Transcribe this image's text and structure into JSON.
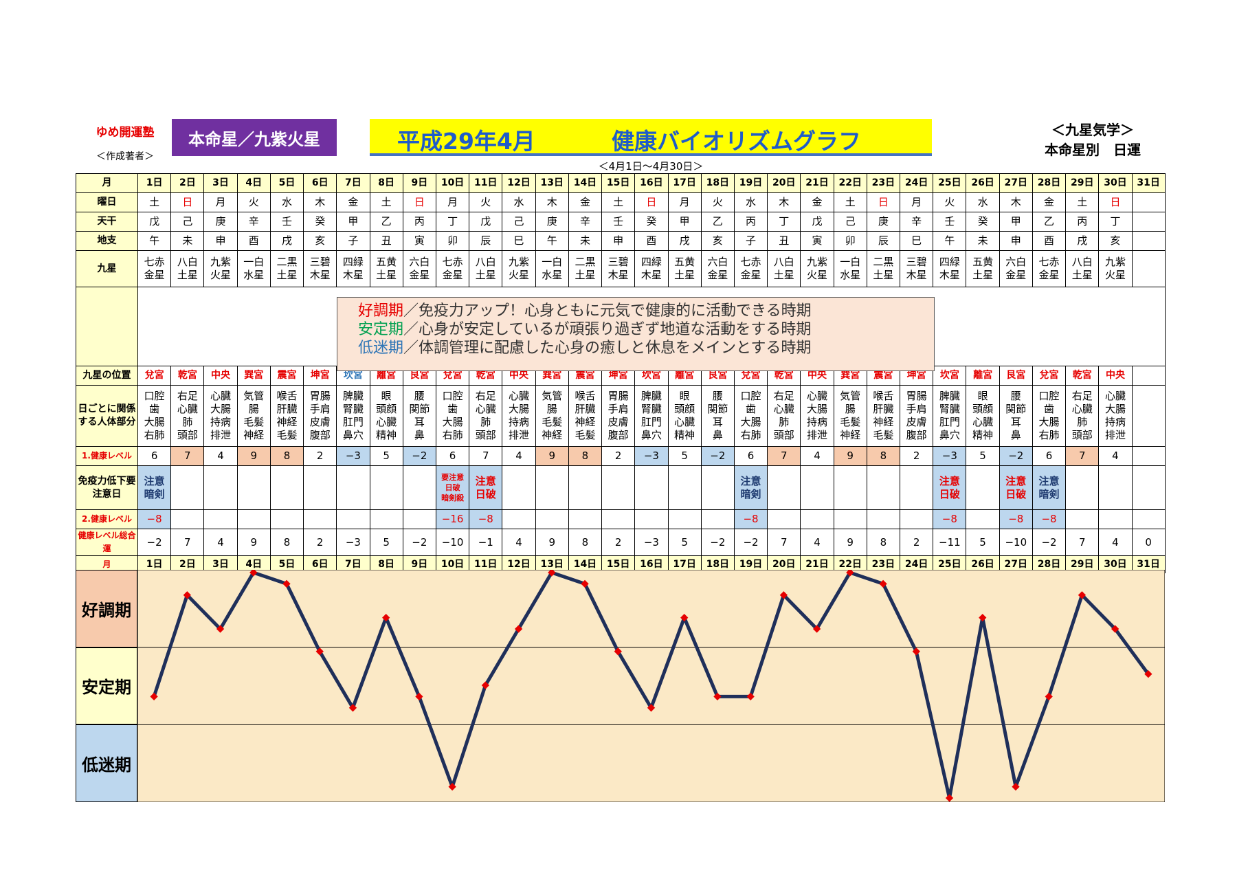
{
  "header": {
    "brand": "ゆめ開運塾",
    "author": "＜作成著者＞",
    "honmei": "本命星／九紫火星",
    "title_period": "平成29年4月",
    "title_main": "健康バイオリズムグラフ",
    "subtitle": "＜4月1日～4月30日＞",
    "corner_line1": "＜九星気学＞",
    "corner_line2": "本命星別　日運"
  },
  "row_labels": {
    "month": "月",
    "weekday": "曜日",
    "stem": "天干",
    "branch": "地支",
    "star": "九星",
    "palace": "九星の位置",
    "body": "日ごとに関係する人体部分",
    "level1": "1.健康レベル",
    "immune": "免疫力低下要注意日",
    "level2": "2.健康レベル",
    "total": "健康レベル総合運"
  },
  "days": [
    "1日",
    "2日",
    "3日",
    "4日",
    "5日",
    "6日",
    "7日",
    "8日",
    "9日",
    "10日",
    "11日",
    "12日",
    "13日",
    "14日",
    "15日",
    "16日",
    "17日",
    "18日",
    "19日",
    "20日",
    "21日",
    "22日",
    "23日",
    "24日",
    "25日",
    "26日",
    "27日",
    "28日",
    "29日",
    "30日",
    "31日"
  ],
  "weekdays": [
    "土",
    "日",
    "月",
    "火",
    "水",
    "木",
    "金",
    "土",
    "日",
    "月",
    "火",
    "水",
    "木",
    "金",
    "土",
    "日",
    "月",
    "火",
    "水",
    "木",
    "金",
    "土",
    "日",
    "月",
    "火",
    "水",
    "木",
    "金",
    "土",
    "日",
    ""
  ],
  "stems": [
    "戊",
    "己",
    "庚",
    "辛",
    "壬",
    "癸",
    "甲",
    "乙",
    "丙",
    "丁",
    "戊",
    "己",
    "庚",
    "辛",
    "壬",
    "癸",
    "甲",
    "乙",
    "丙",
    "丁",
    "戊",
    "己",
    "庚",
    "辛",
    "壬",
    "癸",
    "甲",
    "乙",
    "丙",
    "丁",
    ""
  ],
  "branches": [
    "午",
    "未",
    "申",
    "酉",
    "戌",
    "亥",
    "子",
    "丑",
    "寅",
    "卯",
    "辰",
    "巳",
    "午",
    "未",
    "申",
    "酉",
    "戌",
    "亥",
    "子",
    "丑",
    "寅",
    "卯",
    "辰",
    "巳",
    "午",
    "未",
    "申",
    "酉",
    "戌",
    "亥",
    ""
  ],
  "stars": [
    "七赤\n金星",
    "八白\n土星",
    "九紫\n火星",
    "一白\n水星",
    "二黒\n土星",
    "三碧\n木星",
    "四緑\n木星",
    "五黄\n土星",
    "六白\n金星",
    "七赤\n金星",
    "八白\n土星",
    "九紫\n火星",
    "一白\n水星",
    "二黒\n土星",
    "三碧\n木星",
    "四緑\n木星",
    "五黄\n土星",
    "六白\n金星",
    "七赤\n金星",
    "八白\n土星",
    "九紫\n火星",
    "一白\n水星",
    "二黒\n土星",
    "三碧\n木星",
    "四緑\n木星",
    "五黄\n土星",
    "六白\n金星",
    "七赤\n金星",
    "八白\n土星",
    "九紫\n火星",
    ""
  ],
  "legend": {
    "line1_key": "好調期",
    "line1_text": "／免疫力アップ！心身ともに元気で健康的に活動できる時期",
    "line2_key": "安定期",
    "line2_text": "／心身が安定しているが頑張り過ぎず地道な活動をする時期",
    "line3_key": "低迷期",
    "line3_text": "／体調管理に配慮した心身の癒しと休息をメインとする時期"
  },
  "palaces": [
    "兌宮",
    "乾宮",
    "中央",
    "巽宮",
    "震宮",
    "坤宮",
    "坎宮",
    "離宮",
    "艮宮",
    "兌宮",
    "乾宮",
    "中央",
    "巽宮",
    "震宮",
    "坤宮",
    "坎宮",
    "離宮",
    "艮宮",
    "兌宮",
    "乾宮",
    "中央",
    "巽宮",
    "震宮",
    "坤宮",
    "坎宮",
    "離宮",
    "艮宮",
    "兌宮",
    "乾宮",
    "中央",
    ""
  ],
  "palace_colors": [
    "red",
    "red",
    "red",
    "red",
    "red",
    "red",
    "blue",
    "red",
    "red",
    "red",
    "red",
    "red",
    "red",
    "red",
    "red",
    "red",
    "red",
    "red",
    "red",
    "red",
    "red",
    "red",
    "red",
    "red",
    "red",
    "red",
    "red",
    "red",
    "red",
    "red",
    ""
  ],
  "body_parts": [
    "口腔\n歯\n大腸\n右肺",
    "右足\n心臓\n肺\n頭部",
    "心臓\n大腸\n持病\n排泄",
    "気管\n腸\n毛髪\n神経",
    "喉舌\n肝臓\n神経\n毛髪",
    "胃腸\n手肩\n皮膚\n腹部",
    "脾臓\n腎臓\n肛門\n鼻穴",
    "眼\n頭顔\n心臓\n精神",
    "腰\n関節\n耳\n鼻",
    "口腔\n歯\n大腸\n右肺",
    "右足\n心臓\n肺\n頭部",
    "心臓\n大腸\n持病\n排泄",
    "気管\n腸\n毛髪\n神経",
    "喉舌\n肝臓\n神経\n毛髪",
    "胃腸\n手肩\n皮膚\n腹部",
    "脾臓\n腎臓\n肛門\n鼻穴",
    "眼\n頭顔\n心臓\n精神",
    "腰\n関節\n耳\n鼻",
    "口腔\n歯\n大腸\n右肺",
    "右足\n心臓\n肺\n頭部",
    "心臓\n大腸\n持病\n排泄",
    "気管\n腸\n毛髪\n神経",
    "喉舌\n肝臓\n神経\n毛髪",
    "胃腸\n手肩\n皮膚\n腹部",
    "脾臓\n腎臓\n肛門\n鼻穴",
    "眼\n頭顔\n心臓\n精神",
    "腰\n関節\n耳\n鼻",
    "口腔\n歯\n大腸\n右肺",
    "右足\n心臓\n肺\n頭部",
    "心臓\n大腸\n持病\n排泄",
    ""
  ],
  "level1": [
    "6",
    "7",
    "4",
    "9",
    "8",
    "2",
    "−3",
    "5",
    "−2",
    "6",
    "7",
    "4",
    "9",
    "8",
    "2",
    "−3",
    "5",
    "−2",
    "6",
    "7",
    "4",
    "9",
    "8",
    "2",
    "−3",
    "5",
    "−2",
    "6",
    "7",
    "4",
    ""
  ],
  "immune": [
    "注意\n暗剣",
    "",
    "",
    "",
    "",
    "",
    "",
    "",
    "",
    "要注意\n日破\n暗剣殺",
    "注意\n日破",
    "",
    "",
    "",
    "",
    "",
    "",
    "",
    "注意\n暗剣",
    "",
    "",
    "",
    "",
    "",
    "注意\n日破",
    "",
    "注意\n日破",
    "注意\n暗剣",
    "",
    "",
    ""
  ],
  "level2": [
    "−8",
    "",
    "",
    "",
    "",
    "",
    "",
    "",
    "",
    "−16",
    "−8",
    "",
    "",
    "",
    "",
    "",
    "",
    "",
    "−8",
    "",
    "",
    "",
    "",
    "",
    "−8",
    "",
    "−8",
    "−8",
    "",
    "",
    ""
  ],
  "totals": [
    "−2",
    "7",
    "4",
    "9",
    "8",
    "2",
    "−3",
    "5",
    "−2",
    "−10",
    "−1",
    "4",
    "9",
    "8",
    "2",
    "−3",
    "5",
    "−2",
    "−2",
    "7",
    "4",
    "9",
    "8",
    "2",
    "−11",
    "5",
    "−10",
    "−2",
    "7",
    "4",
    "0"
  ],
  "chart_data": {
    "type": "line",
    "title": "健康バイオリズムグラフ",
    "categories": [
      "1日",
      "2日",
      "3日",
      "4日",
      "5日",
      "6日",
      "7日",
      "8日",
      "9日",
      "10日",
      "11日",
      "12日",
      "13日",
      "14日",
      "15日",
      "16日",
      "17日",
      "18日",
      "19日",
      "20日",
      "21日",
      "22日",
      "23日",
      "24日",
      "25日",
      "26日",
      "27日",
      "28日",
      "29日",
      "30日",
      "31日"
    ],
    "values": [
      -2,
      7,
      4,
      9,
      8,
      2,
      -3,
      5,
      -2,
      -10,
      -1,
      4,
      9,
      8,
      2,
      -3,
      5,
      -2,
      -2,
      7,
      4,
      9,
      8,
      2,
      -11,
      5,
      -10,
      -2,
      7,
      4,
      0
    ],
    "bands": [
      {
        "name": "好調期",
        "color": "#f7caac"
      },
      {
        "name": "安定期",
        "color": "#ffffcc"
      },
      {
        "name": "低迷期",
        "color": "#bdd7ee"
      }
    ],
    "line_color": "#1f2f5a",
    "marker_color": "#e60000",
    "plot_background": "#fbe9c6"
  }
}
